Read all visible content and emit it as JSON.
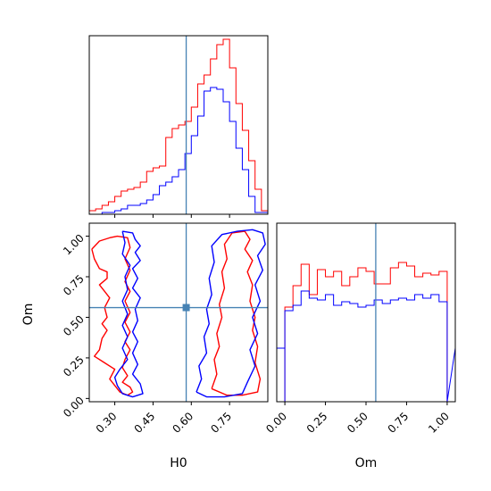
{
  "chart_data": {
    "type": "corner",
    "truth": {
      "H0": 0.58,
      "Om": 0.56
    },
    "colors": {
      "red": "#ff0000",
      "blue": "#0000ff",
      "truth": "#4682b4"
    },
    "panels": [
      {
        "id": "h0-hist",
        "type": "histogram",
        "variable": "H0",
        "xlim": [
          0.2,
          0.9
        ],
        "ylim": [
          0,
          1.0
        ],
        "xticks": [
          0.3,
          0.45,
          0.6,
          0.75
        ],
        "xlabel": "",
        "grid": false,
        "series": [
          {
            "color": "red",
            "bins": [
              0.2,
              0.225,
              0.25,
              0.275,
              0.3,
              0.325,
              0.35,
              0.375,
              0.4,
              0.425,
              0.45,
              0.475,
              0.5,
              0.525,
              0.55,
              0.575,
              0.6,
              0.625,
              0.65,
              0.675,
              0.7,
              0.725,
              0.75,
              0.775,
              0.8,
              0.825,
              0.85,
              0.875,
              0.9
            ],
            "values": [
              0.02,
              0.03,
              0.05,
              0.07,
              0.1,
              0.13,
              0.14,
              0.15,
              0.18,
              0.24,
              0.26,
              0.27,
              0.43,
              0.48,
              0.5,
              0.52,
              0.6,
              0.73,
              0.78,
              0.87,
              0.95,
              0.98,
              0.82,
              0.62,
              0.47,
              0.3,
              0.14,
              0.02
            ]
          },
          {
            "color": "blue",
            "bins": [
              0.2,
              0.225,
              0.25,
              0.275,
              0.3,
              0.325,
              0.35,
              0.375,
              0.4,
              0.425,
              0.45,
              0.475,
              0.5,
              0.525,
              0.55,
              0.575,
              0.6,
              0.625,
              0.65,
              0.675,
              0.7,
              0.725,
              0.75,
              0.775,
              0.8,
              0.825,
              0.85,
              0.875,
              0.9
            ],
            "values": [
              0.0,
              0.0,
              0.01,
              0.01,
              0.02,
              0.03,
              0.05,
              0.05,
              0.06,
              0.08,
              0.11,
              0.16,
              0.18,
              0.21,
              0.25,
              0.34,
              0.44,
              0.55,
              0.69,
              0.71,
              0.7,
              0.63,
              0.52,
              0.37,
              0.25,
              0.1,
              0.01,
              0.01
            ]
          }
        ]
      },
      {
        "id": "om-hist",
        "type": "histogram",
        "variable": "Om",
        "xlim": [
          -0.05,
          1.05
        ],
        "ylim": [
          0,
          1.0
        ],
        "xticks": [
          0.0,
          0.25,
          0.5,
          0.75,
          1.0
        ],
        "tick_labels": [
          "0.00",
          "0.25",
          "0.50",
          "0.75",
          "1.00"
        ],
        "xlabel": "Om",
        "grid": false,
        "series": [
          {
            "color": "red",
            "bins": [
              0.0,
              0.05,
              0.1,
              0.15,
              0.2,
              0.25,
              0.3,
              0.35,
              0.4,
              0.45,
              0.5,
              0.55,
              0.6,
              0.65,
              0.7,
              0.75,
              0.8,
              0.85,
              0.9,
              0.95,
              1.0
            ],
            "values": [
              0.53,
              0.65,
              0.77,
              0.6,
              0.74,
              0.7,
              0.73,
              0.65,
              0.7,
              0.75,
              0.73,
              0.66,
              0.66,
              0.75,
              0.78,
              0.76,
              0.7,
              0.72,
              0.71,
              0.73
            ]
          },
          {
            "color": "blue",
            "bins": [
              0.0,
              0.05,
              0.1,
              0.15,
              0.2,
              0.25,
              0.3,
              0.35,
              0.4,
              0.45,
              0.5,
              0.55,
              0.6,
              0.65,
              0.7,
              0.75,
              0.8,
              0.85,
              0.9,
              0.95,
              1.0
            ],
            "values": [
              0.51,
              0.54,
              0.62,
              0.58,
              0.57,
              0.6,
              0.54,
              0.56,
              0.55,
              0.53,
              0.54,
              0.57,
              0.55,
              0.57,
              0.58,
              0.57,
              0.6,
              0.58,
              0.6,
              0.56
            ]
          }
        ],
        "edges": {
          "lead_in": [
            -0.05,
            0.0
          ],
          "tail_out": [
            1.0,
            1.05
          ]
        }
      },
      {
        "id": "h0-om-contour",
        "type": "contour",
        "xvar": "H0",
        "yvar": "Om",
        "xlim": [
          0.2,
          0.9
        ],
        "ylim": [
          -0.02,
          1.08
        ],
        "xticks": [
          0.3,
          0.45,
          0.6,
          0.75
        ],
        "tick_labels_x": [
          "0.30",
          "0.45",
          "0.60",
          "0.75"
        ],
        "yticks": [
          0.0,
          0.25,
          0.5,
          0.75,
          1.0
        ],
        "tick_labels_y": [
          "0.00",
          "0.25",
          "0.50",
          "0.75",
          "1.00"
        ],
        "xlabel": "H0",
        "ylabel": "Om",
        "grid": false,
        "contours": [
          {
            "color": "red",
            "points": [
              [
                0.21,
                0.92
              ],
              [
                0.22,
                0.86
              ],
              [
                0.24,
                0.8
              ],
              [
                0.27,
                0.78
              ],
              [
                0.27,
                0.74
              ],
              [
                0.24,
                0.7
              ],
              [
                0.26,
                0.66
              ],
              [
                0.28,
                0.62
              ],
              [
                0.26,
                0.56
              ],
              [
                0.27,
                0.5
              ],
              [
                0.25,
                0.46
              ],
              [
                0.27,
                0.42
              ],
              [
                0.25,
                0.37
              ],
              [
                0.24,
                0.3
              ],
              [
                0.22,
                0.26
              ],
              [
                0.26,
                0.22
              ],
              [
                0.3,
                0.18
              ],
              [
                0.28,
                0.12
              ],
              [
                0.3,
                0.08
              ],
              [
                0.32,
                0.04
              ],
              [
                0.35,
                0.02
              ],
              [
                0.37,
                0.04
              ],
              [
                0.36,
                0.07
              ],
              [
                0.33,
                0.1
              ],
              [
                0.35,
                0.14
              ],
              [
                0.33,
                0.19
              ],
              [
                0.34,
                0.24
              ],
              [
                0.36,
                0.3
              ],
              [
                0.34,
                0.35
              ],
              [
                0.36,
                0.41
              ],
              [
                0.34,
                0.47
              ],
              [
                0.36,
                0.53
              ],
              [
                0.34,
                0.6
              ],
              [
                0.36,
                0.66
              ],
              [
                0.34,
                0.72
              ],
              [
                0.36,
                0.79
              ],
              [
                0.34,
                0.86
              ],
              [
                0.36,
                0.93
              ],
              [
                0.35,
                0.99
              ],
              [
                0.31,
                1.0
              ],
              [
                0.28,
                0.99
              ],
              [
                0.24,
                0.97
              ],
              [
                0.21,
                0.92
              ]
            ]
          },
          {
            "color": "red",
            "points": [
              [
                0.68,
                0.06
              ],
              [
                0.7,
                0.15
              ],
              [
                0.69,
                0.24
              ],
              [
                0.71,
                0.32
              ],
              [
                0.7,
                0.4
              ],
              [
                0.72,
                0.5
              ],
              [
                0.71,
                0.58
              ],
              [
                0.73,
                0.68
              ],
              [
                0.72,
                0.78
              ],
              [
                0.74,
                0.86
              ],
              [
                0.73,
                0.95
              ],
              [
                0.76,
                1.02
              ],
              [
                0.81,
                1.03
              ],
              [
                0.83,
                0.98
              ],
              [
                0.81,
                0.92
              ],
              [
                0.84,
                0.85
              ],
              [
                0.82,
                0.78
              ],
              [
                0.84,
                0.7
              ],
              [
                0.83,
                0.6
              ],
              [
                0.85,
                0.5
              ],
              [
                0.84,
                0.42
              ],
              [
                0.86,
                0.32
              ],
              [
                0.85,
                0.22
              ],
              [
                0.87,
                0.12
              ],
              [
                0.86,
                0.04
              ],
              [
                0.8,
                0.02
              ],
              [
                0.74,
                0.02
              ],
              [
                0.68,
                0.06
              ]
            ]
          },
          {
            "color": "blue",
            "points": [
              [
                0.33,
                1.03
              ],
              [
                0.37,
                1.02
              ],
              [
                0.38,
                0.98
              ],
              [
                0.4,
                0.94
              ],
              [
                0.38,
                0.9
              ],
              [
                0.4,
                0.85
              ],
              [
                0.37,
                0.8
              ],
              [
                0.39,
                0.74
              ],
              [
                0.37,
                0.68
              ],
              [
                0.4,
                0.62
              ],
              [
                0.38,
                0.55
              ],
              [
                0.39,
                0.48
              ],
              [
                0.37,
                0.41
              ],
              [
                0.39,
                0.35
              ],
              [
                0.37,
                0.28
              ],
              [
                0.39,
                0.21
              ],
              [
                0.37,
                0.15
              ],
              [
                0.4,
                0.09
              ],
              [
                0.41,
                0.03
              ],
              [
                0.37,
                0.01
              ],
              [
                0.33,
                0.03
              ],
              [
                0.31,
                0.08
              ],
              [
                0.3,
                0.13
              ],
              [
                0.32,
                0.18
              ],
              [
                0.35,
                0.24
              ],
              [
                0.33,
                0.31
              ],
              [
                0.35,
                0.38
              ],
              [
                0.33,
                0.45
              ],
              [
                0.35,
                0.52
              ],
              [
                0.33,
                0.6
              ],
              [
                0.35,
                0.67
              ],
              [
                0.34,
                0.75
              ],
              [
                0.36,
                0.82
              ],
              [
                0.33,
                0.89
              ],
              [
                0.34,
                0.96
              ],
              [
                0.33,
                1.03
              ]
            ]
          },
          {
            "color": "blue",
            "points": [
              [
                0.62,
                0.04
              ],
              [
                0.64,
                0.12
              ],
              [
                0.63,
                0.2
              ],
              [
                0.66,
                0.28
              ],
              [
                0.65,
                0.38
              ],
              [
                0.67,
                0.46
              ],
              [
                0.66,
                0.55
              ],
              [
                0.68,
                0.64
              ],
              [
                0.67,
                0.74
              ],
              [
                0.69,
                0.84
              ],
              [
                0.68,
                0.94
              ],
              [
                0.72,
                1.01
              ],
              [
                0.78,
                1.03
              ],
              [
                0.84,
                1.04
              ],
              [
                0.88,
                1.02
              ],
              [
                0.89,
                0.95
              ],
              [
                0.86,
                0.88
              ],
              [
                0.88,
                0.79
              ],
              [
                0.85,
                0.7
              ],
              [
                0.87,
                0.6
              ],
              [
                0.84,
                0.5
              ],
              [
                0.86,
                0.4
              ],
              [
                0.83,
                0.3
              ],
              [
                0.85,
                0.2
              ],
              [
                0.82,
                0.1
              ],
              [
                0.8,
                0.03
              ],
              [
                0.73,
                0.01
              ],
              [
                0.66,
                0.01
              ],
              [
                0.62,
                0.04
              ]
            ]
          }
        ]
      }
    ]
  }
}
